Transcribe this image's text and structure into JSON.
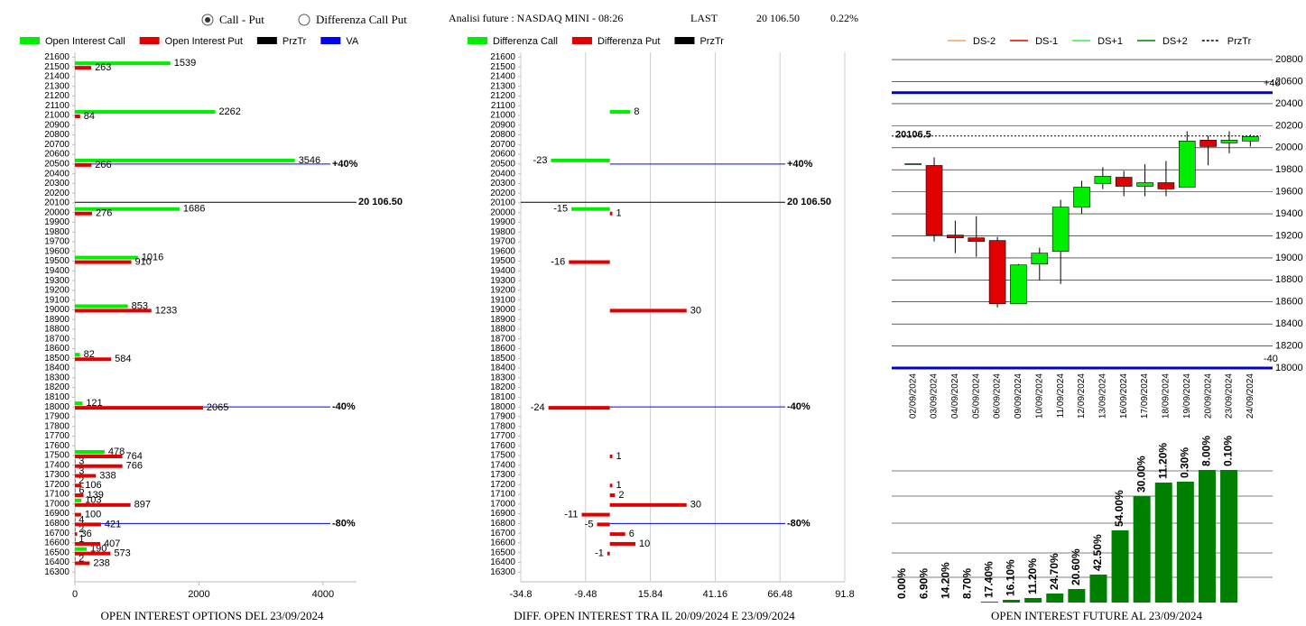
{
  "header": {
    "options": [
      {
        "label": "Call - Put",
        "selected": true
      },
      {
        "label": "Differenza Call Put",
        "selected": false
      }
    ],
    "title": "Analisi future : NASDAQ MINI - 08:26",
    "last_label": "LAST",
    "last_value": "20 106.50",
    "change": "0.22%"
  },
  "chart_data": [
    {
      "type": "bar",
      "orientation": "horizontal",
      "title": "OPEN INTEREST OPTIONS DEL 23/09/2024",
      "x": [
        21500,
        21000,
        20500,
        20000,
        19500,
        19000,
        18500,
        18000,
        17500,
        17400,
        17300,
        17200,
        17100,
        17000,
        16900,
        16800,
        16700,
        16600,
        16500,
        16400
      ],
      "series": [
        {
          "name": "Open Interest Call",
          "color": "#00ee00",
          "values": [
            1539,
            2262,
            3546,
            1686,
            1016,
            853,
            82,
            121,
            478,
            3,
            3,
            2,
            6,
            103,
            null,
            4,
            2,
            1,
            190,
            2
          ]
        },
        {
          "name": "Open Interest Put",
          "color": "#e00000",
          "values": [
            263,
            84,
            266,
            276,
            910,
            1233,
            584,
            2065,
            764,
            766,
            338,
            106,
            139,
            897,
            100,
            421,
            36,
            407,
            573,
            238
          ]
        }
      ],
      "legend_extra": [
        {
          "name": "PrzTr",
          "color": "#000000"
        },
        {
          "name": "VA",
          "color": "#0000ff"
        }
      ],
      "xlim": [
        0,
        4540
      ],
      "xticks": [
        0,
        2000,
        4000
      ],
      "ylim": [
        16200,
        21650
      ],
      "yticks": [
        16300,
        16400,
        16500,
        16600,
        16700,
        16800,
        16900,
        17000,
        17100,
        17200,
        17300,
        17400,
        17500,
        17600,
        17700,
        17800,
        17900,
        18000,
        18100,
        18200,
        18300,
        18400,
        18500,
        18600,
        18700,
        18800,
        18900,
        19000,
        19100,
        19200,
        19300,
        19400,
        19500,
        19600,
        19700,
        19800,
        19900,
        20000,
        20100,
        20200,
        20300,
        20400,
        20500,
        20600,
        20700,
        20800,
        20900,
        21000,
        21100,
        21200,
        21300,
        21400,
        21500,
        21600
      ],
      "annotations": [
        {
          "value": 20500,
          "label": "+40%"
        },
        {
          "value": 18000,
          "label": "-40%"
        },
        {
          "value": 16800,
          "label": "-80%"
        }
      ],
      "annotation_color": "#0000ff",
      "last_price": {
        "value": 20106.5,
        "label": "20 106.50"
      },
      "grid": false
    },
    {
      "type": "bar",
      "orientation": "horizontal",
      "title": "DIFF. OPEN INTEREST TRA IL 20/09/2024 E 23/09/2024",
      "x": [
        21000,
        20500,
        20000,
        19500,
        19000,
        18000,
        17500,
        17200,
        17100,
        17000,
        16900,
        16800,
        16700,
        16600,
        16500
      ],
      "series": [
        {
          "name": "Differenza Call",
          "color": "#00ee00",
          "values": [
            8,
            -23,
            -15,
            null,
            null,
            null,
            null,
            null,
            null,
            null,
            null,
            null,
            null,
            null,
            null
          ]
        },
        {
          "name": "Differenza Put",
          "color": "#e00000",
          "values": [
            null,
            null,
            1,
            -16,
            30,
            -24,
            1,
            1,
            2,
            30,
            -11,
            -5,
            6,
            10,
            -1
          ]
        }
      ],
      "legend_extra": [
        {
          "name": "PrzTr",
          "color": "#000000"
        }
      ],
      "xlim": [
        -34.8,
        91.8
      ],
      "xticks": [
        -34.8,
        -9.48,
        15.84,
        41.16,
        66.48,
        91.8
      ],
      "ylim": [
        16200,
        21650
      ],
      "yticks": [
        16300,
        16400,
        16500,
        16600,
        16700,
        16800,
        16900,
        17000,
        17100,
        17200,
        17300,
        17400,
        17500,
        17600,
        17700,
        17800,
        17900,
        18000,
        18100,
        18200,
        18300,
        18400,
        18500,
        18600,
        18700,
        18800,
        18900,
        19000,
        19100,
        19200,
        19300,
        19400,
        19500,
        19600,
        19700,
        19800,
        19900,
        20000,
        20100,
        20200,
        20300,
        20400,
        20500,
        20600,
        20700,
        20800,
        20900,
        21000,
        21100,
        21200,
        21300,
        21400,
        21500,
        21600
      ],
      "annotations": [
        {
          "value": 20500,
          "label": "+40%"
        },
        {
          "value": 18000,
          "label": "-40%"
        },
        {
          "value": 16800,
          "label": "-80%"
        }
      ],
      "annotation_color": "#0000ff",
      "last_price": {
        "value": 20106.5,
        "label": "20 106.50"
      },
      "grid": true
    },
    {
      "type": "candlestick",
      "categories": [
        "02/09/2024",
        "03/09/2024",
        "04/09/2024",
        "05/09/2024",
        "06/09/2024",
        "09/09/2024",
        "10/09/2024",
        "11/09/2024",
        "12/09/2024",
        "13/09/2024",
        "16/09/2024",
        "17/09/2024",
        "18/09/2024",
        "19/09/2024",
        "20/09/2024",
        "23/09/2024",
        "24/09/2024"
      ],
      "open": [
        19855,
        19839,
        19207,
        19182,
        19158,
        18583,
        18944,
        19059,
        19461,
        19675,
        19732,
        19650,
        19683,
        19642,
        20069,
        20044,
        20061
      ],
      "high": [
        19855,
        19913,
        19338,
        19379,
        19190,
        18944,
        19092,
        19527,
        19700,
        19823,
        19790,
        19850,
        19880,
        20150,
        20110,
        20150,
        20120
      ],
      "low": [
        19855,
        19149,
        19043,
        19010,
        18550,
        18583,
        18796,
        18763,
        19400,
        19625,
        19560,
        19560,
        19560,
        19642,
        19840,
        19950,
        20010
      ],
      "close": [
        19855,
        19207,
        19182,
        19149,
        18583,
        18936,
        19043,
        19461,
        19642,
        19741,
        19650,
        19683,
        19626,
        20061,
        20011,
        20069,
        20102
      ],
      "up_color": "#00ee00",
      "down_color": "#e00000",
      "legend": [
        {
          "name": "DS-2",
          "color": "#f4a460",
          "dash": false
        },
        {
          "name": "DS-1",
          "color": "#e00000",
          "dash": false
        },
        {
          "name": "DS+1",
          "color": "#44ee44",
          "dash": false
        },
        {
          "name": "DS+2",
          "color": "#008000",
          "dash": false
        },
        {
          "name": "PrzTr",
          "color": "#000000",
          "dash": true
        }
      ],
      "ylim": [
        18000,
        20850
      ],
      "yticks": [
        18000,
        18200,
        18400,
        18600,
        18800,
        19000,
        19200,
        19400,
        19600,
        19800,
        20000,
        20200,
        20400,
        20600,
        20800
      ],
      "annotations": [
        {
          "value": 20500,
          "label": "+40"
        },
        {
          "value": 18000,
          "label": "-40"
        }
      ],
      "annotation_color": "#0000cc",
      "last_price": {
        "value": 20106.5,
        "label": "20106.5"
      },
      "grid": true
    },
    {
      "type": "bar",
      "orientation": "vertical",
      "title": "OPEN INTEREST FUTURE AL 23/09/2024",
      "values": [
        0,
        0,
        0,
        0,
        1,
        3,
        5,
        10,
        15,
        31,
        80,
        118,
        133,
        134,
        147,
        147
      ],
      "labels": [
        "0.00%",
        "6.90%",
        "14.20%",
        "8.70%",
        "17.40%",
        "16.10%",
        "11.20%",
        "24.70%",
        "20.60%",
        "42.50%",
        "54.00%",
        "30.00%",
        "11.20%",
        "0.30%",
        "8.00%",
        "0.10%"
      ],
      "color": "#008000",
      "ylim": [
        0,
        160
      ],
      "grid_values": [
        28,
        55,
        88,
        118,
        146
      ]
    }
  ]
}
